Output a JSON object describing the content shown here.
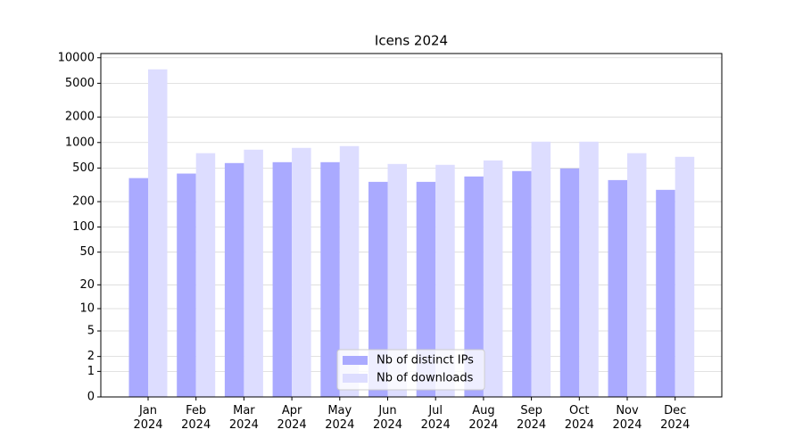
{
  "chart_data": {
    "type": "bar",
    "title": "Icens 2024",
    "categories": [
      "Jan\n2024",
      "Feb\n2024",
      "Mar\n2024",
      "Apr\n2024",
      "May\n2024",
      "Jun\n2024",
      "Jul\n2024",
      "Aug\n2024",
      "Sep\n2024",
      "Oct\n2024",
      "Nov\n2024",
      "Dec\n2024"
    ],
    "series": [
      {
        "name": "Nb of distinct IPs",
        "color": "#aaaaff",
        "values": [
          380,
          430,
          572,
          586,
          586,
          343,
          343,
          397,
          460,
          494,
          360,
          276
        ]
      },
      {
        "name": "Nb of downloads",
        "color": "#ddddff",
        "values": [
          7300,
          748,
          823,
          864,
          907,
          558,
          545,
          615,
          1024,
          1024,
          748,
          678
        ]
      }
    ],
    "yscale": "log1p",
    "ylim": [
      0,
      11220
    ],
    "yticks": [
      0,
      1,
      2,
      5,
      10,
      20,
      50,
      100,
      200,
      500,
      1000,
      2000,
      5000,
      10000
    ],
    "grid": true,
    "legend": "lower center"
  }
}
